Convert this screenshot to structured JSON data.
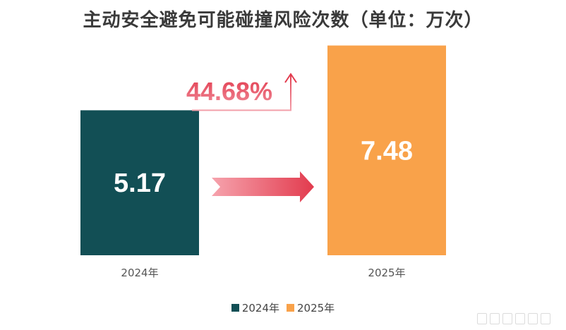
{
  "chart_data": {
    "type": "bar",
    "title": "主动安全避免可能碰撞风险次数（单位：万次）",
    "categories": [
      "2024年",
      "2025年"
    ],
    "values": [
      5.17,
      7.48
    ],
    "value_labels": [
      "5.17",
      "7.48"
    ],
    "colors": [
      "#124f55",
      "#f9a24a"
    ],
    "growth_label": "44.68%",
    "growth_color": "#e23b4e",
    "ylim": [
      0,
      8.6
    ],
    "legend": {
      "position": "bottom",
      "entries": [
        "2024年",
        "2025年"
      ]
    },
    "grid": false
  }
}
